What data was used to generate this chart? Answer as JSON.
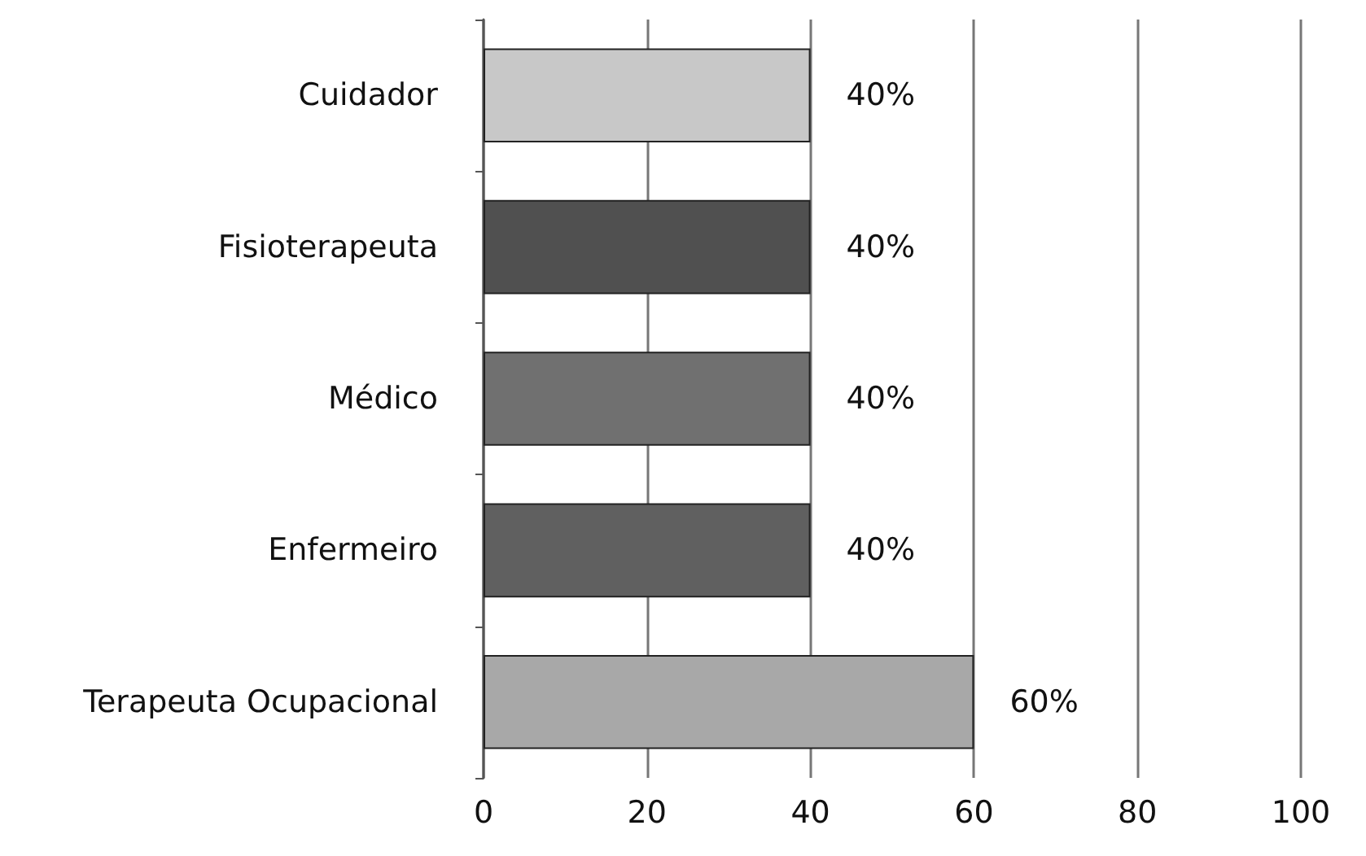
{
  "chart_data": {
    "type": "bar",
    "orientation": "horizontal",
    "categories": [
      "Cuidador",
      "Fisioterapeuta",
      "Médico",
      "Enfermeiro",
      "Terapeuta Ocupacional"
    ],
    "values": [
      40,
      40,
      40,
      40,
      60
    ],
    "colors": [
      "#c8c8c8",
      "#505050",
      "#707070",
      "#606060",
      "#a8a8a8"
    ],
    "value_labels": [
      "40%",
      "40%",
      "40%",
      "40%",
      "60%"
    ],
    "xlim": [
      0,
      100
    ],
    "xticks": [
      0,
      20,
      40,
      60,
      80,
      100
    ],
    "grid": "x"
  }
}
